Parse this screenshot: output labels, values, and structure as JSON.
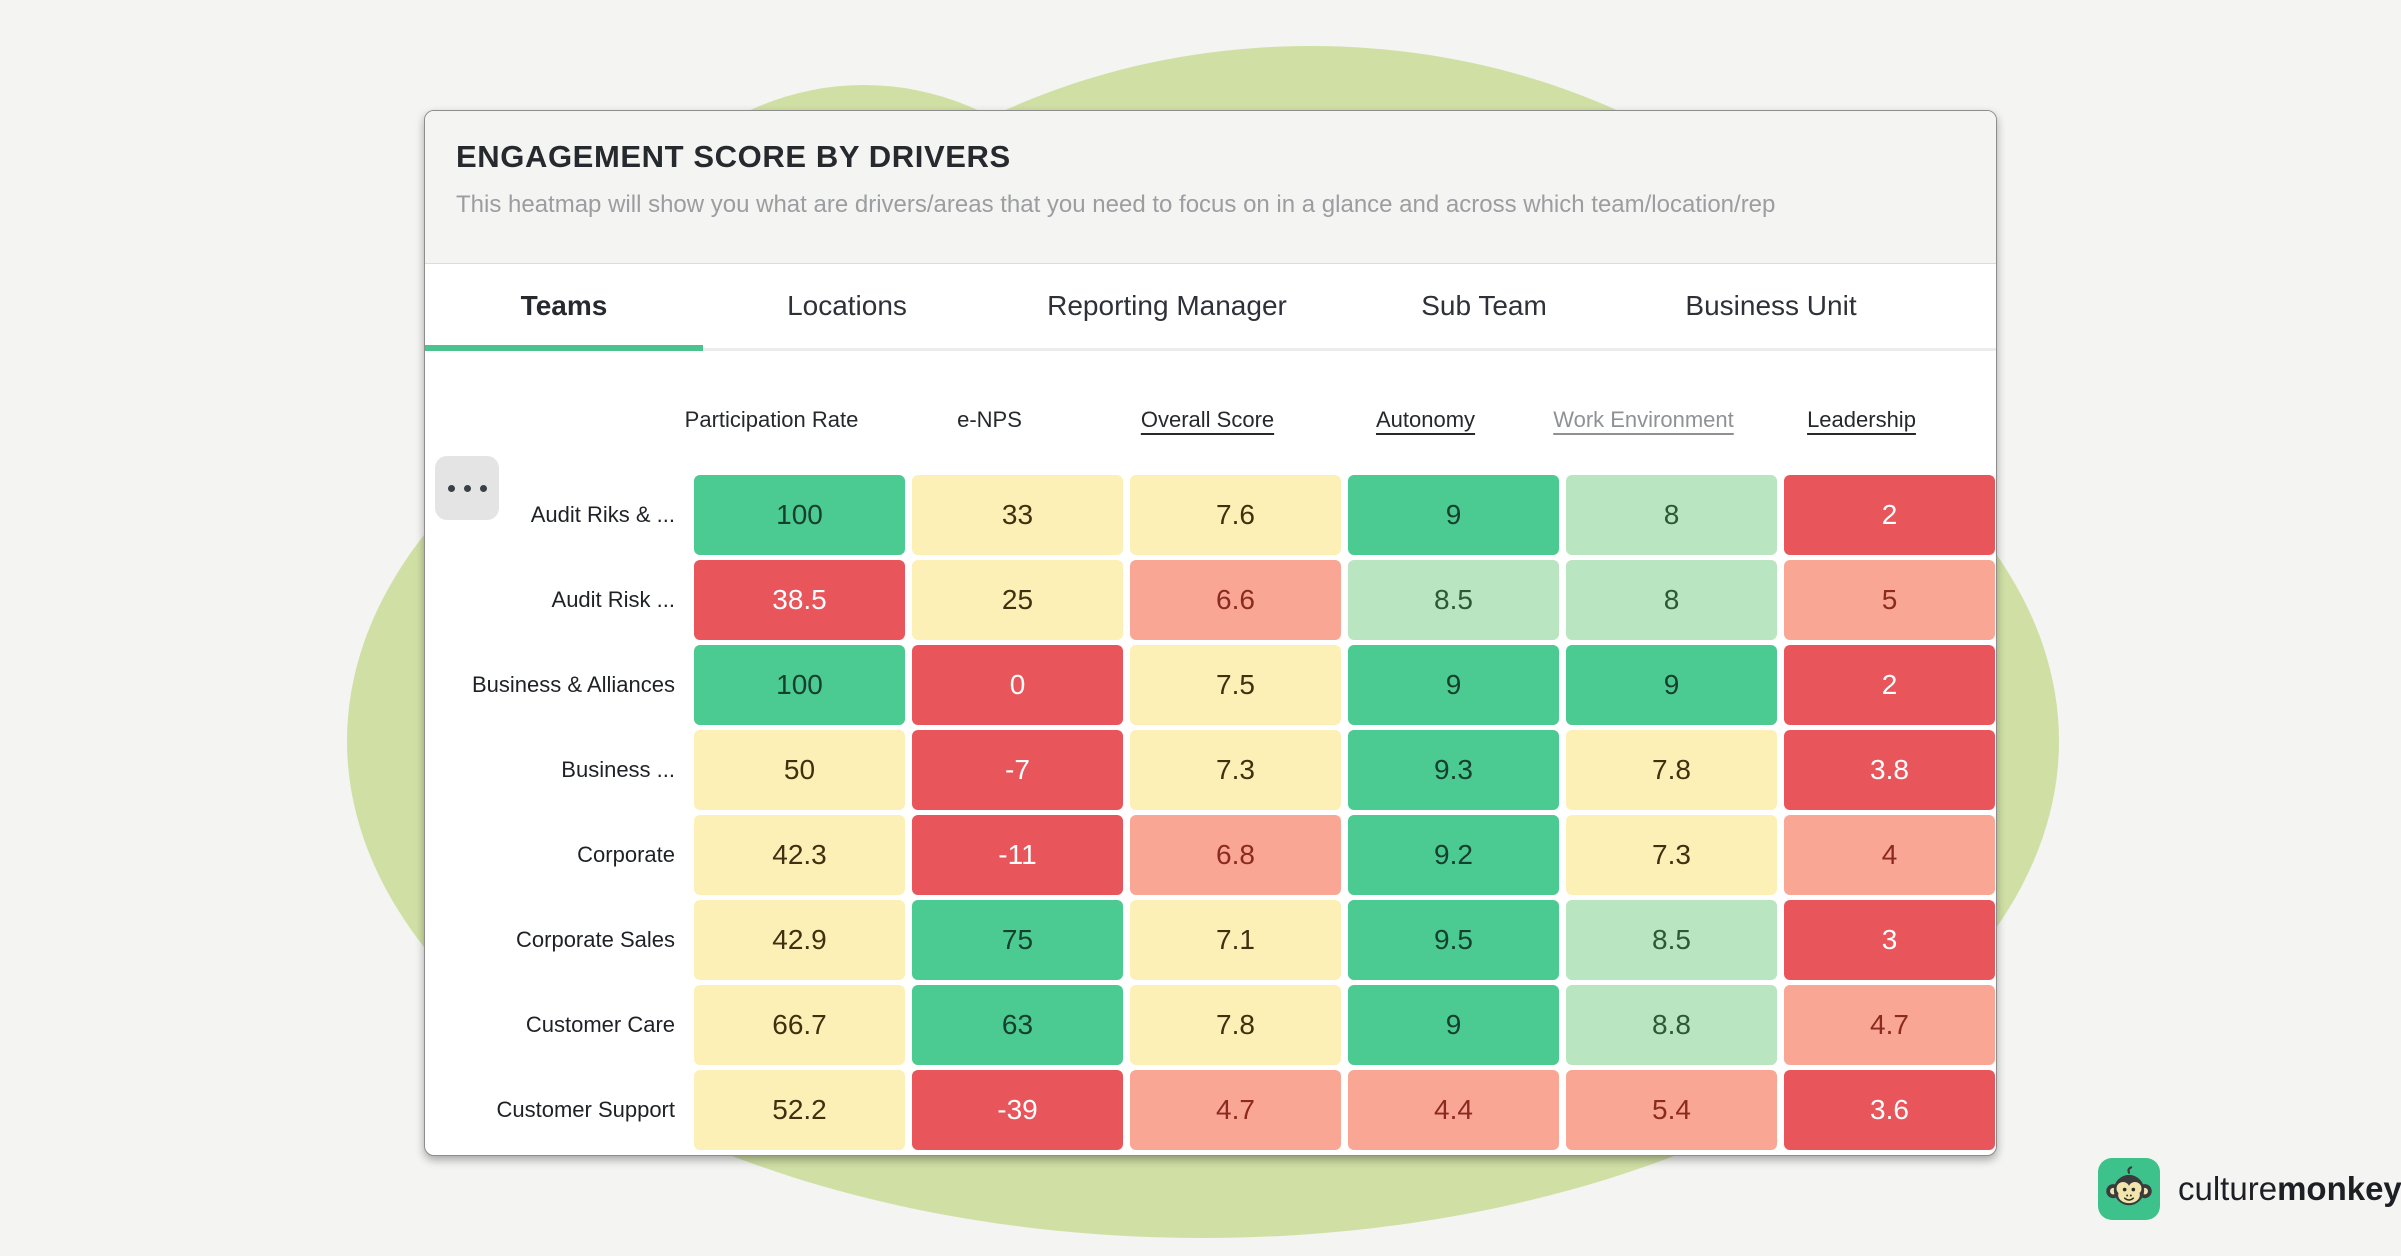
{
  "page": {
    "background": "#f4f4f2",
    "blob_color": "#d0e0a5"
  },
  "card": {
    "title": "ENGAGEMENT SCORE BY DRIVERS",
    "subtitle": "This heatmap will show you what are drivers/areas that you need to focus on in a glance and across which team/location/rep"
  },
  "tabs": {
    "items": [
      {
        "label": "Teams",
        "active": true
      },
      {
        "label": "Locations",
        "active": false
      },
      {
        "label": "Reporting Manager",
        "active": false
      },
      {
        "label": "Sub Team",
        "active": false
      },
      {
        "label": "Business Unit",
        "active": false
      }
    ],
    "active_underline_color": "#4cc38e"
  },
  "heatmap": {
    "more_button_icon": "ellipsis-icon",
    "columns": [
      {
        "label": "Participation Rate",
        "underlined": false,
        "muted": false
      },
      {
        "label": "e-NPS",
        "underlined": false,
        "muted": false
      },
      {
        "label": "Overall Score",
        "underlined": true,
        "muted": false
      },
      {
        "label": "Autonomy",
        "underlined": true,
        "muted": false
      },
      {
        "label": "Work Environment",
        "underlined": true,
        "muted": true
      },
      {
        "label": "Leadership",
        "underlined": true,
        "muted": false
      }
    ],
    "palette": {
      "green": {
        "bg": "#4bca91",
        "text": "#16402d"
      },
      "lightgreen": {
        "bg": "#b9e5c1",
        "text": "#2b5a33"
      },
      "yellow": {
        "bg": "#fcf0b6",
        "text": "#3f3110"
      },
      "salmon": {
        "bg": "#f9a794",
        "text": "#8c2a1f"
      },
      "red": {
        "bg": "#e8555b",
        "text": "#ffffff"
      }
    },
    "rows": [
      {
        "label": "Audit Riks & ...",
        "cells": [
          {
            "value": "100",
            "level": "green"
          },
          {
            "value": "33",
            "level": "yellow"
          },
          {
            "value": "7.6",
            "level": "yellow"
          },
          {
            "value": "9",
            "level": "green"
          },
          {
            "value": "8",
            "level": "lightgreen"
          },
          {
            "value": "2",
            "level": "red"
          }
        ]
      },
      {
        "label": "Audit Risk ...",
        "cells": [
          {
            "value": "38.5",
            "level": "red"
          },
          {
            "value": "25",
            "level": "yellow"
          },
          {
            "value": "6.6",
            "level": "salmon"
          },
          {
            "value": "8.5",
            "level": "lightgreen"
          },
          {
            "value": "8",
            "level": "lightgreen"
          },
          {
            "value": "5",
            "level": "salmon"
          }
        ]
      },
      {
        "label": "Business & Alliances",
        "cells": [
          {
            "value": "100",
            "level": "green"
          },
          {
            "value": "0",
            "level": "red"
          },
          {
            "value": "7.5",
            "level": "yellow"
          },
          {
            "value": "9",
            "level": "green"
          },
          {
            "value": "9",
            "level": "green"
          },
          {
            "value": "2",
            "level": "red"
          }
        ]
      },
      {
        "label": "Business ...",
        "cells": [
          {
            "value": "50",
            "level": "yellow"
          },
          {
            "value": "-7",
            "level": "red"
          },
          {
            "value": "7.3",
            "level": "yellow"
          },
          {
            "value": "9.3",
            "level": "green"
          },
          {
            "value": "7.8",
            "level": "yellow"
          },
          {
            "value": "3.8",
            "level": "red"
          }
        ]
      },
      {
        "label": "Corporate",
        "cells": [
          {
            "value": "42.3",
            "level": "yellow"
          },
          {
            "value": "-11",
            "level": "red"
          },
          {
            "value": "6.8",
            "level": "salmon"
          },
          {
            "value": "9.2",
            "level": "green"
          },
          {
            "value": "7.3",
            "level": "yellow"
          },
          {
            "value": "4",
            "level": "salmon"
          }
        ]
      },
      {
        "label": "Corporate Sales",
        "cells": [
          {
            "value": "42.9",
            "level": "yellow"
          },
          {
            "value": "75",
            "level": "green"
          },
          {
            "value": "7.1",
            "level": "yellow"
          },
          {
            "value": "9.5",
            "level": "green"
          },
          {
            "value": "8.5",
            "level": "lightgreen"
          },
          {
            "value": "3",
            "level": "red"
          }
        ]
      },
      {
        "label": "Customer Care",
        "cells": [
          {
            "value": "66.7",
            "level": "yellow"
          },
          {
            "value": "63",
            "level": "green"
          },
          {
            "value": "7.8",
            "level": "yellow"
          },
          {
            "value": "9",
            "level": "green"
          },
          {
            "value": "8.8",
            "level": "lightgreen"
          },
          {
            "value": "4.7",
            "level": "salmon"
          }
        ]
      },
      {
        "label": "Customer Support",
        "cells": [
          {
            "value": "52.2",
            "level": "yellow"
          },
          {
            "value": "-39",
            "level": "red"
          },
          {
            "value": "4.7",
            "level": "salmon"
          },
          {
            "value": "4.4",
            "level": "salmon"
          },
          {
            "value": "5.4",
            "level": "salmon"
          },
          {
            "value": "3.6",
            "level": "red"
          }
        ]
      }
    ]
  },
  "chart_data": {
    "type": "heatmap",
    "title": "ENGAGEMENT SCORE BY DRIVERS",
    "columns": [
      "Participation Rate",
      "e-NPS",
      "Overall Score",
      "Autonomy",
      "Work Environment",
      "Leadership"
    ],
    "rows": [
      "Audit Riks & ...",
      "Audit Risk ...",
      "Business & Alliances",
      "Business ...",
      "Corporate",
      "Corporate Sales",
      "Customer Care",
      "Customer Support"
    ],
    "values": [
      [
        100,
        33,
        7.6,
        9,
        8,
        2
      ],
      [
        38.5,
        25,
        6.6,
        8.5,
        8,
        5
      ],
      [
        100,
        0,
        7.5,
        9,
        9,
        2
      ],
      [
        50,
        -7,
        7.3,
        9.3,
        7.8,
        3.8
      ],
      [
        42.3,
        -11,
        6.8,
        9.2,
        7.3,
        4
      ],
      [
        42.9,
        75,
        7.1,
        9.5,
        8.5,
        3
      ],
      [
        66.7,
        63,
        7.8,
        9,
        8.8,
        4.7
      ],
      [
        52.2,
        -39,
        4.7,
        4.4,
        5.4,
        3.6
      ]
    ],
    "legend": "cell color encodes score band: green=high, yellow=medium, salmon/red=low"
  },
  "logo": {
    "icon": "monkey-icon",
    "icon_bg": "#3dc28b",
    "brand_light": "culture",
    "brand_bold": "monkey"
  }
}
